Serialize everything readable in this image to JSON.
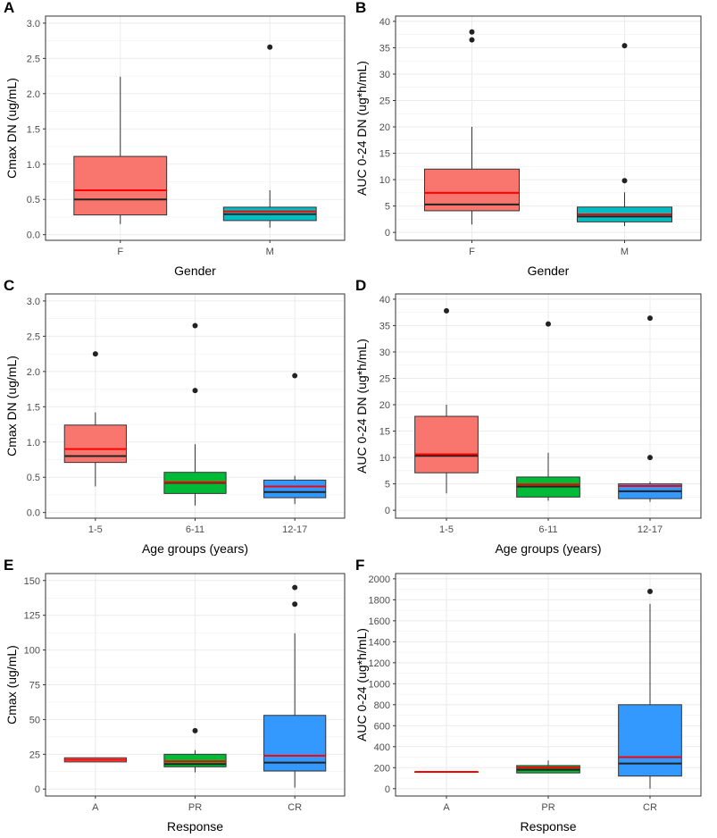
{
  "colors": {
    "F": "#F8766D",
    "M": "#00BFC4",
    "group1": "#F8766D",
    "group2": "#00BA38",
    "group3": "#3399FF",
    "mean_line": "#FF0000",
    "median_line": "#222222",
    "grid": "#EBEBEB",
    "outlier": "#222222"
  },
  "chart_data": [
    {
      "label": "A",
      "type": "box",
      "xlabel": "Gender",
      "ylabel": "Cmax DN (ug/mL)",
      "ylim": [
        -0.08,
        3.1
      ],
      "yticks": [
        "0.0",
        "0.5",
        "1.0",
        "1.5",
        "2.0",
        "2.5",
        "3.0"
      ],
      "categories": [
        {
          "name": "F",
          "min": 0.15,
          "q1": 0.28,
          "median": 0.5,
          "mean": 0.63,
          "q3": 1.11,
          "max": 2.24,
          "outliers": [],
          "color": "F"
        },
        {
          "name": "M",
          "min": 0.1,
          "q1": 0.2,
          "median": 0.29,
          "mean": 0.33,
          "q3": 0.39,
          "max": 0.63,
          "outliers": [
            2.66
          ],
          "color": "M"
        }
      ]
    },
    {
      "label": "B",
      "type": "box",
      "xlabel": "Gender",
      "ylabel": "AUC 0-24 DN (ug*h/mL)",
      "ylim": [
        -1.5,
        41
      ],
      "yticks": [
        "0",
        "5",
        "10",
        "15",
        "20",
        "25",
        "30",
        "35",
        "40"
      ],
      "categories": [
        {
          "name": "F",
          "min": 1.5,
          "q1": 4.1,
          "median": 5.3,
          "mean": 7.5,
          "q3": 12.0,
          "max": 20.0,
          "outliers": [
            36.5,
            38.0
          ],
          "color": "F"
        },
        {
          "name": "M",
          "min": 1.2,
          "q1": 2.0,
          "median": 3.0,
          "mean": 3.4,
          "q3": 4.8,
          "max": 7.6,
          "outliers": [
            9.8,
            35.4
          ],
          "color": "M"
        }
      ]
    },
    {
      "label": "C",
      "type": "box",
      "xlabel": "Age groups (years)",
      "ylabel": "Cmax DN (ug/mL)",
      "ylim": [
        -0.08,
        3.1
      ],
      "yticks": [
        "0.0",
        "0.5",
        "1.0",
        "1.5",
        "2.0",
        "2.5",
        "3.0"
      ],
      "categories": [
        {
          "name": "1-5",
          "min": 0.37,
          "q1": 0.71,
          "median": 0.8,
          "mean": 0.9,
          "q3": 1.24,
          "max": 1.42,
          "outliers": [
            2.25
          ],
          "color": "group1"
        },
        {
          "name": "6-11",
          "min": 0.1,
          "q1": 0.27,
          "median": 0.42,
          "mean": 0.43,
          "q3": 0.57,
          "max": 0.97,
          "outliers": [
            1.73,
            2.65
          ],
          "color": "group2"
        },
        {
          "name": "12-17",
          "min": 0.12,
          "q1": 0.21,
          "median": 0.29,
          "mean": 0.37,
          "q3": 0.46,
          "max": 0.52,
          "outliers": [
            1.94
          ],
          "color": "group3"
        }
      ]
    },
    {
      "label": "D",
      "type": "box",
      "xlabel": "Age groups (years)",
      "ylabel": "AUC 0-24 DN (ug*h/mL)",
      "ylim": [
        -1.5,
        41
      ],
      "yticks": [
        "0",
        "5",
        "10",
        "15",
        "20",
        "25",
        "30",
        "35",
        "40"
      ],
      "categories": [
        {
          "name": "1-5",
          "min": 3.2,
          "q1": 7.1,
          "median": 10.3,
          "mean": 10.6,
          "q3": 17.8,
          "max": 20.0,
          "outliers": [
            37.8
          ],
          "color": "group1"
        },
        {
          "name": "6-11",
          "min": 1.8,
          "q1": 2.5,
          "median": 4.5,
          "mean": 4.9,
          "q3": 6.3,
          "max": 10.9,
          "outliers": [
            35.3
          ],
          "color": "group2"
        },
        {
          "name": "12-17",
          "min": 1.6,
          "q1": 2.2,
          "median": 3.6,
          "mean": 4.6,
          "q3": 5.0,
          "max": 5.4,
          "outliers": [
            10.0,
            36.4
          ],
          "color": "group3"
        }
      ]
    },
    {
      "label": "E",
      "type": "box",
      "xlabel": "Response",
      "ylabel": "Cmax (ug/mL)",
      "ylim": [
        -5,
        155
      ],
      "yticks": [
        "0",
        "25",
        "50",
        "75",
        "100",
        "125",
        "150"
      ],
      "categories": [
        {
          "name": "A",
          "min": 19.5,
          "q1": 19.5,
          "median": 21.0,
          "mean": 21.0,
          "q3": 22.5,
          "max": 22.5,
          "outliers": [],
          "color": "group1"
        },
        {
          "name": "PR",
          "min": 12.0,
          "q1": 16.0,
          "median": 18.0,
          "mean": 20.0,
          "q3": 25.0,
          "max": 28.0,
          "outliers": [
            42.0
          ],
          "color": "group2"
        },
        {
          "name": "CR",
          "min": 1.0,
          "q1": 13.0,
          "median": 19.0,
          "mean": 24.0,
          "q3": 53.0,
          "max": 112.0,
          "outliers": [
            133.0,
            145.0
          ],
          "color": "group3"
        }
      ]
    },
    {
      "label": "F",
      "type": "box",
      "xlabel": "Response",
      "ylabel": "AUC 0-24 (ug*h/mL)",
      "ylim": [
        -70,
        2050
      ],
      "yticks": [
        "0",
        "200",
        "400",
        "600",
        "800",
        "1000",
        "1200",
        "1400",
        "1600",
        "1800",
        "2000"
      ],
      "categories": [
        {
          "name": "A",
          "min": 160,
          "q1": 160,
          "median": 160,
          "mean": 160,
          "q3": 160,
          "max": 160,
          "outliers": [],
          "color": "group1"
        },
        {
          "name": "PR",
          "min": 150,
          "q1": 150,
          "median": 180,
          "mean": 200,
          "q3": 220,
          "max": 270,
          "outliers": [],
          "color": "group2"
        },
        {
          "name": "CR",
          "min": 0,
          "q1": 120,
          "median": 240,
          "mean": 300,
          "q3": 800,
          "max": 1760,
          "outliers": [
            1880
          ],
          "color": "group3"
        }
      ]
    }
  ]
}
